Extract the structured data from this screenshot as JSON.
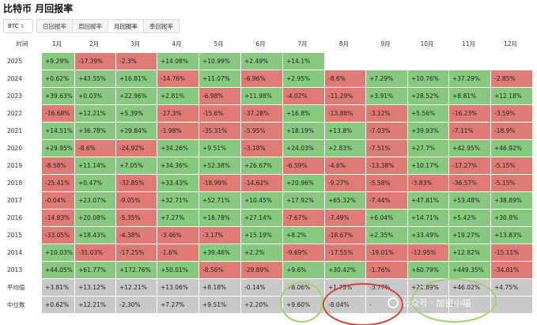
{
  "page": {
    "title": "比特币 月回报率"
  },
  "controls": {
    "asset": "BTC",
    "tabs": [
      {
        "label": "日回报率",
        "active": false
      },
      {
        "label": "周回报率",
        "active": false
      },
      {
        "label": "月回报率",
        "active": true
      },
      {
        "label": "季回报率",
        "active": false
      }
    ]
  },
  "table": {
    "corner": "时间",
    "months": [
      "1月",
      "2月",
      "3月",
      "4月",
      "5月",
      "6月",
      "7月",
      "8月",
      "9月",
      "10月",
      "11月",
      "12月"
    ],
    "rows": [
      {
        "label": "2025",
        "values": [
          "+9.29%",
          "-17.39%",
          "-2.3%",
          "+14.08%",
          "+10.99%",
          "+2.49%",
          "+14.1%",
          "",
          "",
          "",
          "",
          ""
        ]
      },
      {
        "label": "2024",
        "values": [
          "+0.62%",
          "+43.55%",
          "+16.81%",
          "-14.76%",
          "+11.07%",
          "-6.96%",
          "+2.95%",
          "-8.6%",
          "+7.29%",
          "+10.76%",
          "+37.29%",
          "-2.85%"
        ]
      },
      {
        "label": "2023",
        "values": [
          "+39.63%",
          "+0.03%",
          "+22.96%",
          "+2.81%",
          "-6.98%",
          "+11.98%",
          "-4.02%",
          "-11.29%",
          "+3.91%",
          "+28.52%",
          "+8.81%",
          "+12.18%"
        ]
      },
      {
        "label": "2022",
        "values": [
          "-16.68%",
          "+12.21%",
          "+5.39%",
          "-17.3%",
          "-15.6%",
          "-37.28%",
          "+16.8%",
          "-13.88%",
          "-3.12%",
          "+5.56%",
          "-16.23%",
          "-3.59%"
        ]
      },
      {
        "label": "2021",
        "values": [
          "+14.51%",
          "+36.78%",
          "+29.84%",
          "-1.98%",
          "-35.31%",
          "-5.95%",
          "+18.19%",
          "+13.8%",
          "-7.03%",
          "+39.93%",
          "-7.11%",
          "-18.9%"
        ]
      },
      {
        "label": "2020",
        "values": [
          "+29.95%",
          "-8.6%",
          "-24.92%",
          "+34.26%",
          "+9.51%",
          "-3.18%",
          "+24.03%",
          "+2.83%",
          "-7.51%",
          "+27.7%",
          "+42.95%",
          "+46.92%"
        ]
      },
      {
        "label": "2019",
        "values": [
          "-8.58%",
          "+11.14%",
          "+7.05%",
          "+34.36%",
          "+52.38%",
          "+26.67%",
          "-6.59%",
          "-4.6%",
          "-13.38%",
          "+10.17%",
          "-17.27%",
          "-5.15%"
        ]
      },
      {
        "label": "2018",
        "values": [
          "-25.41%",
          "+0.47%",
          "-32.85%",
          "+33.43%",
          "-18.99%",
          "-14.62%",
          "+20.96%",
          "-9.27%",
          "-5.58%",
          "-3.83%",
          "-36.57%",
          "-5.15%"
        ]
      },
      {
        "label": "2017",
        "values": [
          "-0.04%",
          "+23.07%",
          "-9.05%",
          "+32.71%",
          "+52.71%",
          "+10.45%",
          "+17.92%",
          "+65.32%",
          "-7.44%",
          "+47.81%",
          "+53.48%",
          "+38.89%"
        ]
      },
      {
        "label": "2016",
        "values": [
          "-14.83%",
          "+20.08%",
          "-5.35%",
          "+7.27%",
          "+18.78%",
          "+27.14%",
          "-7.67%",
          "-7.49%",
          "+6.04%",
          "+14.71%",
          "+5.42%",
          "+30.8%"
        ]
      },
      {
        "label": "2015",
        "values": [
          "-33.05%",
          "+18.43%",
          "-4.38%",
          "-3.46%",
          "-3.17%",
          "+15.19%",
          "+8.2%",
          "-18.67%",
          "+2.35%",
          "+33.49%",
          "+19.27%",
          "+13.83%"
        ]
      },
      {
        "label": "2014",
        "values": [
          "+10.03%",
          "-31.03%",
          "-17.25%",
          "-1.6%",
          "+39.46%",
          "+2.2%",
          "-9.69%",
          "-17.55%",
          "-19.01%",
          "-12.95%",
          "+12.82%",
          "-15.11%"
        ]
      },
      {
        "label": "2013",
        "values": [
          "+44.05%",
          "+61.77%",
          "+172.76%",
          "+50.01%",
          "-8.56%",
          "-29.89%",
          "+9.6%",
          "+30.42%",
          "-1.76%",
          "+60.79%",
          "+449.35%",
          "-34.81%"
        ]
      }
    ],
    "summary": [
      {
        "label": "平均值",
        "values": [
          "+3.81%",
          "+13.12%",
          "+12.21%",
          "+13.06%",
          "+8.18%",
          "-0.14%",
          "+8.06%",
          "+1.75%",
          "-3.77%",
          "+21.89%",
          "+46.02%",
          "+4.75%"
        ]
      },
      {
        "label": "中位数",
        "values": [
          "+0.62%",
          "+12.21%",
          "-2.30%",
          "+7.27%",
          "+9.51%",
          "+2.20%",
          "+9.60%",
          "-8.04%",
          "-",
          "-",
          "-",
          "-"
        ]
      }
    ]
  },
  "colors": {
    "positive": "#86c97f",
    "negative": "#e07b73",
    "summary": "#c8c8c8",
    "ring_green": "#9fd36a",
    "ring_red": "#d4443a"
  },
  "watermark": {
    "text": "公众号 · 加密小喵"
  }
}
